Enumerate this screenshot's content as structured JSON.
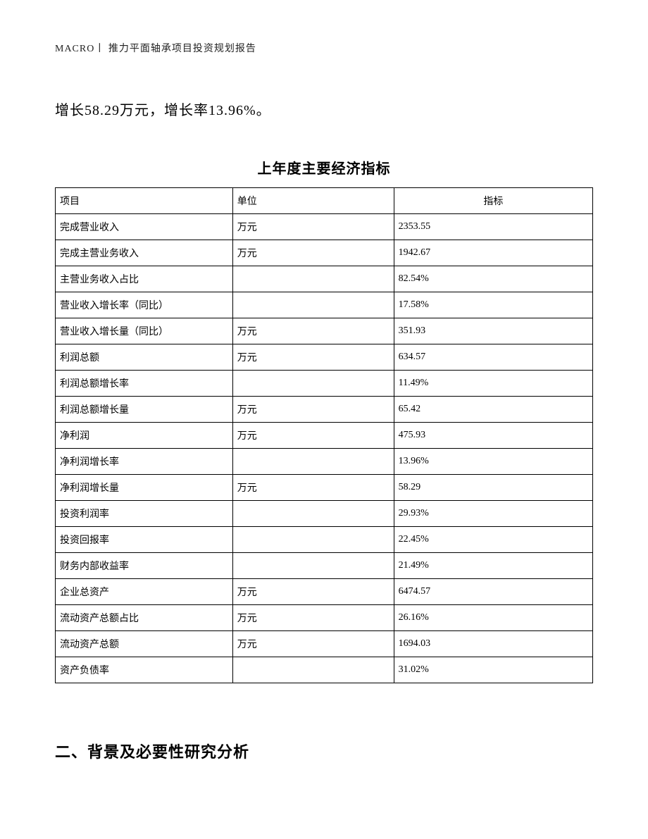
{
  "header": {
    "text": "MACRO丨 推力平面轴承项目投资规划报告"
  },
  "body_line": "增长58.29万元，增长率13.96%。",
  "table": {
    "title": "上年度主要经济指标",
    "columns": [
      "项目",
      "单位",
      "指标"
    ],
    "col_widths_pct": [
      33,
      30,
      37
    ],
    "header_align": [
      "left",
      "left",
      "center"
    ],
    "rows": [
      [
        "完成营业收入",
        "万元",
        "2353.55"
      ],
      [
        "完成主营业务收入",
        "万元",
        "1942.67"
      ],
      [
        "主营业务收入占比",
        "",
        "82.54%"
      ],
      [
        "营业收入增长率（同比）",
        "",
        "17.58%"
      ],
      [
        "营业收入增长量（同比）",
        "万元",
        "351.93"
      ],
      [
        "利润总额",
        "万元",
        "634.57"
      ],
      [
        "利润总额增长率",
        "",
        "11.49%"
      ],
      [
        "利润总额增长量",
        "万元",
        "65.42"
      ],
      [
        "净利润",
        "万元",
        "475.93"
      ],
      [
        "净利润增长率",
        "",
        "13.96%"
      ],
      [
        "净利润增长量",
        "万元",
        "58.29"
      ],
      [
        "投资利润率",
        "",
        "29.93%"
      ],
      [
        "投资回报率",
        "",
        "22.45%"
      ],
      [
        "财务内部收益率",
        "",
        "21.49%"
      ],
      [
        "企业总资产",
        "万元",
        "6474.57"
      ],
      [
        "流动资产总额占比",
        "万元",
        "26.16%"
      ],
      [
        "流动资产总额",
        "万元",
        "1694.03"
      ],
      [
        "资产负债率",
        "",
        "31.02%"
      ]
    ],
    "border_color": "#000000",
    "cell_fontsize": 14,
    "title_fontsize": 20
  },
  "section_heading": "二、背景及必要性研究分析",
  "styles": {
    "page_bg": "#ffffff",
    "text_color": "#000000",
    "body_fontsize": 20,
    "header_fontsize": 14,
    "heading_fontsize": 22
  }
}
